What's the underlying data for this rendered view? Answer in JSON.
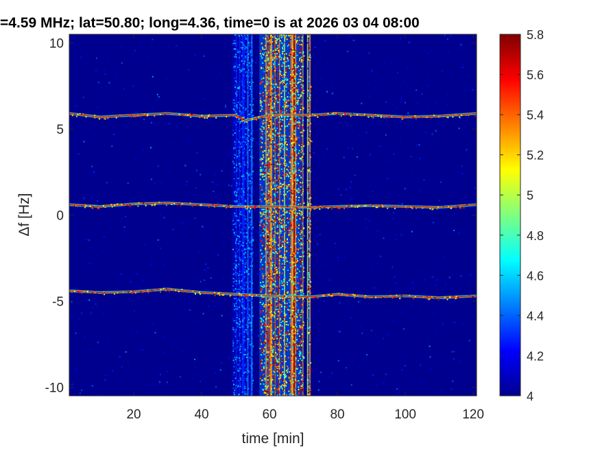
{
  "chart_data": {
    "type": "heatmap",
    "title": "=4.59 MHz;  lat=50.80; long=4.36, time=0 is at 2026 03 04 08:00",
    "xlabel": "time [min]",
    "ylabel": "Δf [Hz]",
    "xlim": [
      1,
      121
    ],
    "ylim": [
      -10.5,
      10.5
    ],
    "xticks": [
      20,
      40,
      60,
      80,
      100,
      120
    ],
    "yticks": [
      -10,
      -5,
      0,
      5,
      10
    ],
    "colorbar": {
      "colormap": "jet",
      "clim": [
        4,
        5.8
      ],
      "ticks": [
        4,
        4.2,
        4.4,
        4.6,
        4.8,
        5,
        5.2,
        5.4,
        5.6,
        5.8
      ]
    },
    "background_value": 4.0,
    "doppler_traces": [
      {
        "name": "upper-trace",
        "points": [
          [
            1,
            5.9
          ],
          [
            10,
            5.7
          ],
          [
            20,
            5.8
          ],
          [
            30,
            5.9
          ],
          [
            40,
            5.75
          ],
          [
            50,
            5.8
          ],
          [
            53,
            5.5
          ],
          [
            60,
            5.8
          ],
          [
            72,
            5.8
          ],
          [
            80,
            5.9
          ],
          [
            90,
            5.8
          ],
          [
            100,
            5.7
          ],
          [
            110,
            5.75
          ],
          [
            121,
            5.9
          ]
        ]
      },
      {
        "name": "middle-trace",
        "points": [
          [
            1,
            0.6
          ],
          [
            10,
            0.5
          ],
          [
            20,
            0.65
          ],
          [
            30,
            0.7
          ],
          [
            40,
            0.6
          ],
          [
            50,
            0.5
          ],
          [
            60,
            0.5
          ],
          [
            72,
            0.45
          ],
          [
            80,
            0.5
          ],
          [
            90,
            0.55
          ],
          [
            100,
            0.5
          ],
          [
            110,
            0.45
          ],
          [
            121,
            0.6
          ]
        ]
      },
      {
        "name": "lower-trace",
        "points": [
          [
            1,
            -4.4
          ],
          [
            10,
            -4.5
          ],
          [
            20,
            -4.45
          ],
          [
            30,
            -4.3
          ],
          [
            40,
            -4.5
          ],
          [
            50,
            -4.6
          ],
          [
            60,
            -4.7
          ],
          [
            72,
            -4.75
          ],
          [
            80,
            -4.6
          ],
          [
            90,
            -4.75
          ],
          [
            100,
            -4.7
          ],
          [
            110,
            -4.8
          ],
          [
            121,
            -4.7
          ]
        ]
      }
    ],
    "interference_bands": [
      {
        "x_from": 49,
        "x_to": 55,
        "level": 4.5
      },
      {
        "x_from": 57,
        "x_to": 70,
        "level": 5.6
      },
      {
        "x_from": 71,
        "x_to": 72,
        "level": 5.7
      }
    ]
  }
}
